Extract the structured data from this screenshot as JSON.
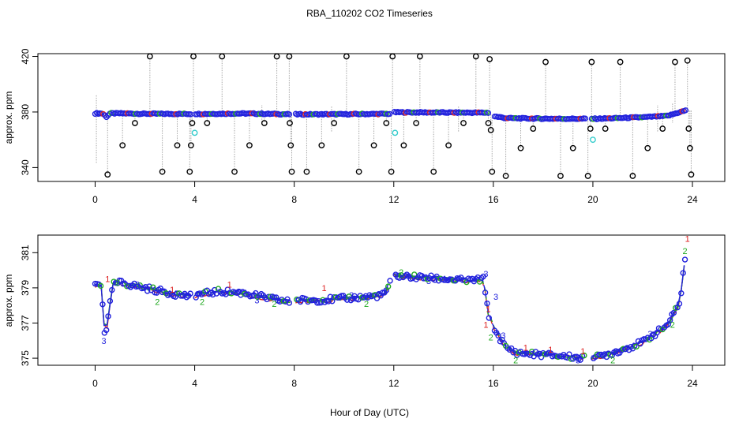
{
  "chart_data": [
    {
      "type": "scatter",
      "title": "RBA_110202  CO2 Timeseries",
      "xlabel": "",
      "ylabel": "approx. ppm",
      "xlim": [
        -2.3,
        25.3
      ],
      "ylim": [
        330,
        422
      ],
      "xticks": [
        "0",
        "4",
        "8",
        "12",
        "16",
        "20",
        "24"
      ],
      "yticks": [
        "340",
        "380",
        "420"
      ],
      "colors": {
        "ring": "#000000",
        "mean_a": "#2222dd",
        "mean_b": "#22aa22",
        "mean_c": "#dd2222",
        "flag": "#33cccc",
        "spike": "#a6a6a6"
      },
      "baseline_x": [
        0,
        0.3,
        0.45,
        0.6,
        1,
        2,
        4,
        6,
        7.8,
        8,
        10,
        11.9,
        12,
        14,
        15.8,
        16,
        16.5,
        18,
        20,
        21,
        22,
        23,
        23.7
      ],
      "baseline_y": [
        379,
        379,
        376.5,
        379,
        379,
        378.7,
        378.6,
        378.9,
        378.4,
        378.3,
        378.4,
        378.7,
        379.8,
        379.6,
        379.5,
        377,
        375.6,
        375.2,
        375.1,
        375.6,
        376.2,
        377.2,
        381
      ],
      "outliers": [
        {
          "x": 0.5,
          "y": 335
        },
        {
          "x": 1.1,
          "y": 356
        },
        {
          "x": 1.6,
          "y": 372
        },
        {
          "x": 2.2,
          "y": 420
        },
        {
          "x": 2.7,
          "y": 337
        },
        {
          "x": 3.3,
          "y": 356
        },
        {
          "x": 3.8,
          "y": 337
        },
        {
          "x": 3.85,
          "y": 356
        },
        {
          "x": 3.9,
          "y": 372
        },
        {
          "x": 3.95,
          "y": 420
        },
        {
          "x": 4.5,
          "y": 372
        },
        {
          "x": 5.1,
          "y": 420
        },
        {
          "x": 5.6,
          "y": 337
        },
        {
          "x": 6.2,
          "y": 356
        },
        {
          "x": 6.8,
          "y": 372
        },
        {
          "x": 7.3,
          "y": 420
        },
        {
          "x": 7.8,
          "y": 420
        },
        {
          "x": 7.82,
          "y": 372
        },
        {
          "x": 7.86,
          "y": 356
        },
        {
          "x": 7.9,
          "y": 337
        },
        {
          "x": 8.5,
          "y": 337
        },
        {
          "x": 9.1,
          "y": 356
        },
        {
          "x": 9.6,
          "y": 372
        },
        {
          "x": 10.1,
          "y": 420
        },
        {
          "x": 10.6,
          "y": 337
        },
        {
          "x": 11.2,
          "y": 356
        },
        {
          "x": 11.7,
          "y": 372
        },
        {
          "x": 11.9,
          "y": 337
        },
        {
          "x": 11.95,
          "y": 420
        },
        {
          "x": 12.4,
          "y": 356
        },
        {
          "x": 12.9,
          "y": 372
        },
        {
          "x": 13.05,
          "y": 420
        },
        {
          "x": 13.6,
          "y": 337
        },
        {
          "x": 14.2,
          "y": 356
        },
        {
          "x": 14.8,
          "y": 372
        },
        {
          "x": 15.3,
          "y": 420
        },
        {
          "x": 15.8,
          "y": 372
        },
        {
          "x": 15.85,
          "y": 418
        },
        {
          "x": 15.9,
          "y": 367
        },
        {
          "x": 15.95,
          "y": 337
        },
        {
          "x": 16.5,
          "y": 334
        },
        {
          "x": 17.1,
          "y": 354
        },
        {
          "x": 17.6,
          "y": 368
        },
        {
          "x": 18.1,
          "y": 416
        },
        {
          "x": 18.7,
          "y": 334
        },
        {
          "x": 19.2,
          "y": 354
        },
        {
          "x": 19.8,
          "y": 334
        },
        {
          "x": 19.9,
          "y": 368
        },
        {
          "x": 19.95,
          "y": 416
        },
        {
          "x": 20.5,
          "y": 368
        },
        {
          "x": 21.1,
          "y": 416
        },
        {
          "x": 21.6,
          "y": 334
        },
        {
          "x": 22.2,
          "y": 354
        },
        {
          "x": 22.8,
          "y": 368
        },
        {
          "x": 23.3,
          "y": 416
        },
        {
          "x": 23.8,
          "y": 417
        },
        {
          "x": 23.85,
          "y": 368
        },
        {
          "x": 23.9,
          "y": 354
        },
        {
          "x": 23.95,
          "y": 335
        }
      ],
      "flagged": [
        {
          "x": 4.0,
          "y": 365
        },
        {
          "x": 12.05,
          "y": 365
        },
        {
          "x": 20.0,
          "y": 360
        }
      ]
    },
    {
      "type": "line",
      "title": "",
      "xlabel": "Hour of Day (UTC)",
      "ylabel": "approx. ppm",
      "xlim": [
        -2.3,
        25.3
      ],
      "ylim": [
        374.6,
        382.0
      ],
      "xticks": [
        "0",
        "4",
        "8",
        "12",
        "16",
        "20",
        "24"
      ],
      "yticks": [
        "375",
        "377",
        "379",
        "381"
      ],
      "series": [
        {
          "name": "1",
          "color": "#dd2222"
        },
        {
          "name": "2",
          "color": "#22aa22"
        },
        {
          "name": "3",
          "color": "#2222dd"
        }
      ],
      "baseline_x": [
        0,
        0.25,
        0.4,
        0.5,
        0.7,
        1,
        2,
        3,
        3.9,
        4,
        5,
        6,
        7,
        7.8,
        8.1,
        9,
        10,
        11,
        11.6,
        12,
        13,
        14,
        15,
        15.6,
        15.8,
        16.1,
        16.5,
        17,
        18,
        19,
        19.6,
        20,
        21,
        22,
        23,
        23.5,
        23.75
      ],
      "baseline_y": [
        379.2,
        379.2,
        376.0,
        377.0,
        379.2,
        379.3,
        379.0,
        378.7,
        378.5,
        378.6,
        378.8,
        378.7,
        378.4,
        378.2,
        378.3,
        378.3,
        378.4,
        378.5,
        378.6,
        379.7,
        379.6,
        379.5,
        379.4,
        379.5,
        377.5,
        376.5,
        375.6,
        375.3,
        375.2,
        375.1,
        375.0,
        375.0,
        375.4,
        375.9,
        376.9,
        378.2,
        381.3
      ],
      "series_offsets": {
        "1": [
          0.25,
          0.2,
          0.35
        ],
        "2": [
          -0.25,
          -0.15,
          -0.3
        ],
        "3": [
          0.0,
          0.1,
          -0.1
        ]
      },
      "labels_1": [
        {
          "x": 0.5,
          "y": 379.5
        },
        {
          "x": 3.1,
          "y": 378.9
        },
        {
          "x": 5.4,
          "y": 379.2
        },
        {
          "x": 9.2,
          "y": 379.0
        },
        {
          "x": 15.8,
          "y": 377.8
        },
        {
          "x": 15.7,
          "y": 376.9
        },
        {
          "x": 17.3,
          "y": 375.6
        },
        {
          "x": 18.3,
          "y": 375.5
        },
        {
          "x": 19.6,
          "y": 375.4
        },
        {
          "x": 23.8,
          "y": 381.8
        }
      ],
      "labels_2": [
        {
          "x": 0.9,
          "y": 379.3
        },
        {
          "x": 2.5,
          "y": 378.2
        },
        {
          "x": 4.3,
          "y": 378.2
        },
        {
          "x": 7.2,
          "y": 378.1
        },
        {
          "x": 10.9,
          "y": 378.1
        },
        {
          "x": 12.3,
          "y": 379.9
        },
        {
          "x": 15.9,
          "y": 376.2
        },
        {
          "x": 16.9,
          "y": 374.9
        },
        {
          "x": 20.8,
          "y": 374.9
        },
        {
          "x": 23.2,
          "y": 376.9
        },
        {
          "x": 23.7,
          "y": 381.1
        }
      ],
      "labels_3": [
        {
          "x": 0.35,
          "y": 376.0
        },
        {
          "x": 1.7,
          "y": 379.2
        },
        {
          "x": 3.6,
          "y": 378.6
        },
        {
          "x": 6.5,
          "y": 378.3
        },
        {
          "x": 10.3,
          "y": 378.6
        },
        {
          "x": 13.4,
          "y": 379.4
        },
        {
          "x": 15.7,
          "y": 379.8
        },
        {
          "x": 16.1,
          "y": 378.5
        },
        {
          "x": 16.4,
          "y": 376.3
        },
        {
          "x": 19.4,
          "y": 374.9
        },
        {
          "x": 22.3,
          "y": 376.4
        }
      ]
    }
  ]
}
